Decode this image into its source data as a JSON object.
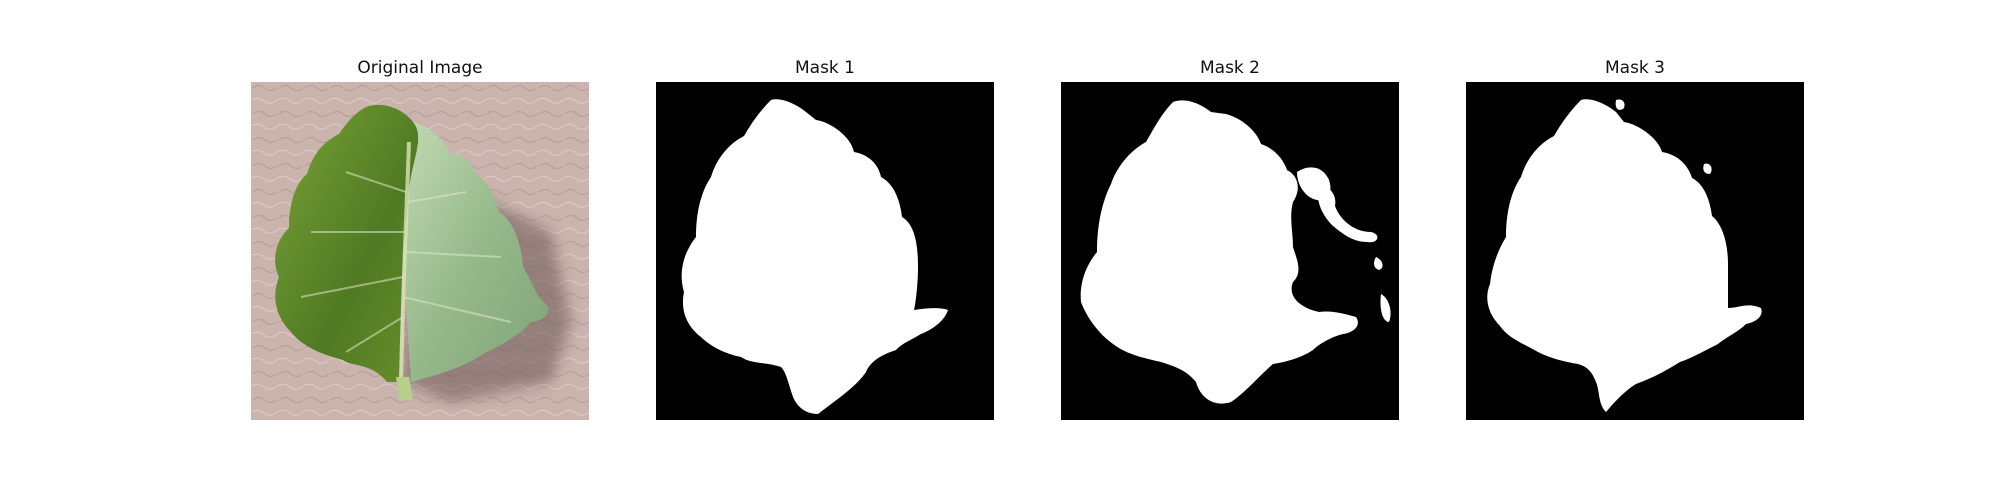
{
  "figure": {
    "panels": [
      {
        "title": "Original Image",
        "content": "leaf-photo"
      },
      {
        "title": "Mask 1",
        "content": "segmentation-mask"
      },
      {
        "title": "Mask 2",
        "content": "segmentation-mask"
      },
      {
        "title": "Mask 3",
        "content": "segmentation-mask"
      }
    ]
  },
  "colors": {
    "background": "#ffffff",
    "mask_background": "#000000",
    "mask_foreground": "#ffffff",
    "surface": "#cbb3ae",
    "leaf_dark": "#4f7a23",
    "leaf_light": "#a8c79a"
  }
}
